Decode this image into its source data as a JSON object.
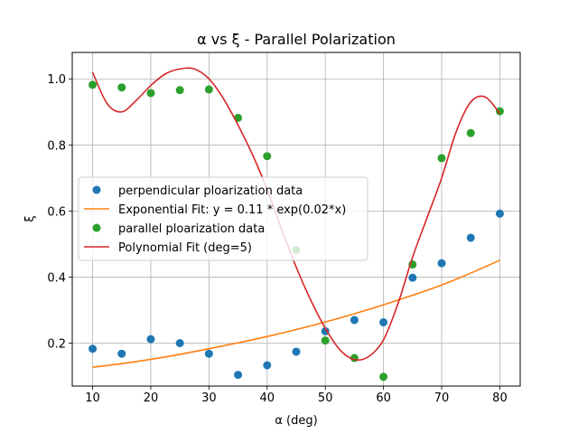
{
  "chart_data": {
    "type": "scatter",
    "title": "α vs ξ - Parallel Polarization",
    "xlabel": "α (deg)",
    "ylabel": "ξ",
    "xlim": [
      6.5,
      83.5
    ],
    "ylim": [
      0.07,
      1.08
    ],
    "x_ticks": [
      10,
      20,
      30,
      40,
      50,
      60,
      70,
      80
    ],
    "x_tick_labels": [
      "10",
      "20",
      "30",
      "40",
      "50",
      "60",
      "70",
      "80"
    ],
    "y_ticks": [
      0.2,
      0.4,
      0.6,
      0.8,
      1.0
    ],
    "y_tick_labels": [
      "0.2",
      "0.4",
      "0.6",
      "0.8",
      "1.0"
    ],
    "grid": true,
    "legend_position": "center-left",
    "x": [
      10,
      15,
      20,
      25,
      30,
      35,
      40,
      45,
      50,
      55,
      60,
      65,
      70,
      75,
      80
    ],
    "series": [
      {
        "name": "perpendicular ploarization data",
        "kind": "scatter",
        "color": "#1f77b4",
        "values": [
          0.183,
          0.168,
          0.212,
          0.2,
          0.168,
          0.104,
          0.133,
          0.174,
          0.236,
          0.27,
          0.263,
          0.398,
          0.442,
          0.519,
          0.592
        ]
      },
      {
        "name": "Exponential Fit: y = 0.11 * exp(0.02*x)",
        "kind": "line",
        "color": "#ff7f0e",
        "x": [
          10,
          15,
          20,
          25,
          30,
          35,
          40,
          45,
          50,
          55,
          60,
          65,
          70,
          75,
          80
        ],
        "values": [
          0.127,
          0.138,
          0.151,
          0.166,
          0.183,
          0.201,
          0.22,
          0.241,
          0.264,
          0.289,
          0.316,
          0.345,
          0.376,
          0.412,
          0.451
        ]
      },
      {
        "name": "parallel ploarization data",
        "kind": "scatter",
        "color": "#2ca02c",
        "values": [
          0.982,
          0.974,
          0.957,
          0.966,
          0.968,
          0.882,
          0.766,
          0.482,
          0.208,
          0.155,
          0.098,
          0.438,
          0.76,
          0.836,
          0.902
        ]
      },
      {
        "name": "Polynomial Fit (deg=5)",
        "kind": "line",
        "color": "#d62728",
        "x": [
          10,
          12.5,
          15,
          17.5,
          20,
          22.5,
          25,
          27.5,
          30,
          32.5,
          35,
          37.5,
          40,
          42.5,
          45,
          47.5,
          50,
          52.5,
          55,
          57.5,
          60,
          62.5,
          65,
          67.5,
          70,
          72.5,
          75,
          77.5,
          80
        ],
        "values": [
          1.02,
          0.925,
          0.9,
          0.935,
          0.98,
          1.015,
          1.03,
          1.03,
          1.0,
          0.94,
          0.86,
          0.77,
          0.665,
          0.545,
          0.43,
          0.33,
          0.245,
          0.18,
          0.15,
          0.16,
          0.21,
          0.32,
          0.46,
          0.58,
          0.7,
          0.84,
          0.93,
          0.945,
          0.895
        ]
      }
    ]
  }
}
